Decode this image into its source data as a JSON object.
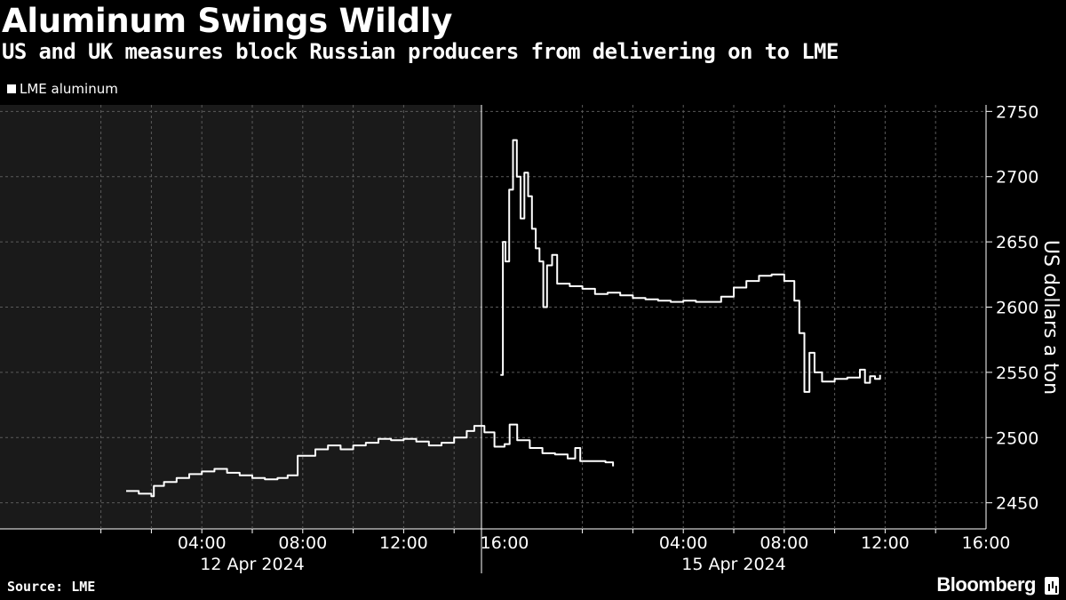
{
  "header": {
    "title": "Aluminum Swings Wildly",
    "subtitle": "US and UK measures block Russian producers from delivering on to LME"
  },
  "legend": {
    "label": "LME aluminum"
  },
  "footer": {
    "source": "Source: LME",
    "brand": "Bloomberg"
  },
  "colors": {
    "background": "#000000",
    "shaded_session": "#1a1a1a",
    "line": "#ffffff",
    "grid": "#5a5a5a"
  },
  "chart_data": {
    "type": "line",
    "title": "Aluminum Swings Wildly",
    "subtitle": "US and UK measures block Russian producers from delivering on to LME",
    "ylabel": "US dollars a ton",
    "ylim": [
      2430,
      2755
    ],
    "yticks": [
      2450,
      2500,
      2550,
      2600,
      2650,
      2700,
      2750
    ],
    "grid": true,
    "legend_position": "top-left",
    "panels": [
      {
        "date_label": "12 Apr 2024",
        "shaded": true,
        "x_range_hours": [
          -4,
          24
        ],
        "tick_labels": [
          "04:00",
          "08:00",
          "12:00",
          "16:00"
        ],
        "tick_hours": [
          4,
          8,
          12,
          16
        ],
        "points": [
          [
            1.0,
            2459
          ],
          [
            1.5,
            2457
          ],
          [
            2.0,
            2455
          ],
          [
            2.1,
            2463
          ],
          [
            2.5,
            2466
          ],
          [
            3.0,
            2469
          ],
          [
            3.5,
            2472
          ],
          [
            4.0,
            2474
          ],
          [
            4.5,
            2476
          ],
          [
            5.0,
            2473
          ],
          [
            5.5,
            2471
          ],
          [
            6.0,
            2469
          ],
          [
            6.5,
            2468
          ],
          [
            7.0,
            2469
          ],
          [
            7.4,
            2471
          ],
          [
            7.8,
            2486
          ],
          [
            8.5,
            2491
          ],
          [
            9.0,
            2494
          ],
          [
            9.5,
            2491
          ],
          [
            10.0,
            2494
          ],
          [
            10.5,
            2496
          ],
          [
            11.0,
            2499
          ],
          [
            11.5,
            2498
          ],
          [
            12.0,
            2499
          ],
          [
            12.5,
            2497
          ],
          [
            13.0,
            2494
          ],
          [
            13.5,
            2496
          ],
          [
            14.0,
            2500
          ],
          [
            14.5,
            2505
          ],
          [
            14.8,
            2509
          ],
          [
            15.2,
            2504
          ],
          [
            15.6,
            2493
          ],
          [
            16.0,
            2495
          ],
          [
            16.2,
            2510
          ],
          [
            16.5,
            2498
          ],
          [
            17.0,
            2492
          ],
          [
            17.5,
            2488
          ],
          [
            18.0,
            2487
          ],
          [
            18.5,
            2484
          ],
          [
            18.8,
            2492
          ],
          [
            19.0,
            2482
          ],
          [
            19.5,
            2482
          ],
          [
            20.0,
            2481
          ],
          [
            20.3,
            2478
          ]
        ]
      },
      {
        "date_label": "15 Apr 2024",
        "shaded": false,
        "x_range_hours": [
          -4,
          24
        ],
        "tick_labels": [
          "04:00",
          "08:00",
          "12:00",
          "16:00"
        ],
        "tick_hours": [
          4,
          8,
          12,
          16
        ],
        "points": [
          [
            -3.25,
            2548
          ],
          [
            -3.15,
            2650
          ],
          [
            -3.05,
            2635
          ],
          [
            -2.9,
            2690
          ],
          [
            -2.75,
            2728
          ],
          [
            -2.6,
            2700
          ],
          [
            -2.45,
            2668
          ],
          [
            -2.3,
            2703
          ],
          [
            -2.15,
            2685
          ],
          [
            -2.0,
            2660
          ],
          [
            -1.85,
            2645
          ],
          [
            -1.7,
            2635
          ],
          [
            -1.55,
            2600
          ],
          [
            -1.4,
            2632
          ],
          [
            -1.2,
            2640
          ],
          [
            -1.0,
            2618
          ],
          [
            -0.5,
            2616
          ],
          [
            0.0,
            2614
          ],
          [
            0.5,
            2610
          ],
          [
            1.0,
            2611
          ],
          [
            1.5,
            2609
          ],
          [
            2.0,
            2607
          ],
          [
            2.5,
            2606
          ],
          [
            3.0,
            2605
          ],
          [
            3.5,
            2604
          ],
          [
            4.0,
            2605
          ],
          [
            4.5,
            2604
          ],
          [
            5.0,
            2604
          ],
          [
            5.5,
            2608
          ],
          [
            6.0,
            2615
          ],
          [
            6.5,
            2620
          ],
          [
            7.0,
            2624
          ],
          [
            7.5,
            2625
          ],
          [
            8.0,
            2620
          ],
          [
            8.4,
            2605
          ],
          [
            8.6,
            2580
          ],
          [
            8.8,
            2535
          ],
          [
            9.0,
            2565
          ],
          [
            9.2,
            2550
          ],
          [
            9.5,
            2543
          ],
          [
            10.0,
            2545
          ],
          [
            10.5,
            2546
          ],
          [
            11.0,
            2552
          ],
          [
            11.2,
            2542
          ],
          [
            11.4,
            2547
          ],
          [
            11.6,
            2545
          ],
          [
            11.8,
            2548
          ]
        ]
      }
    ]
  }
}
